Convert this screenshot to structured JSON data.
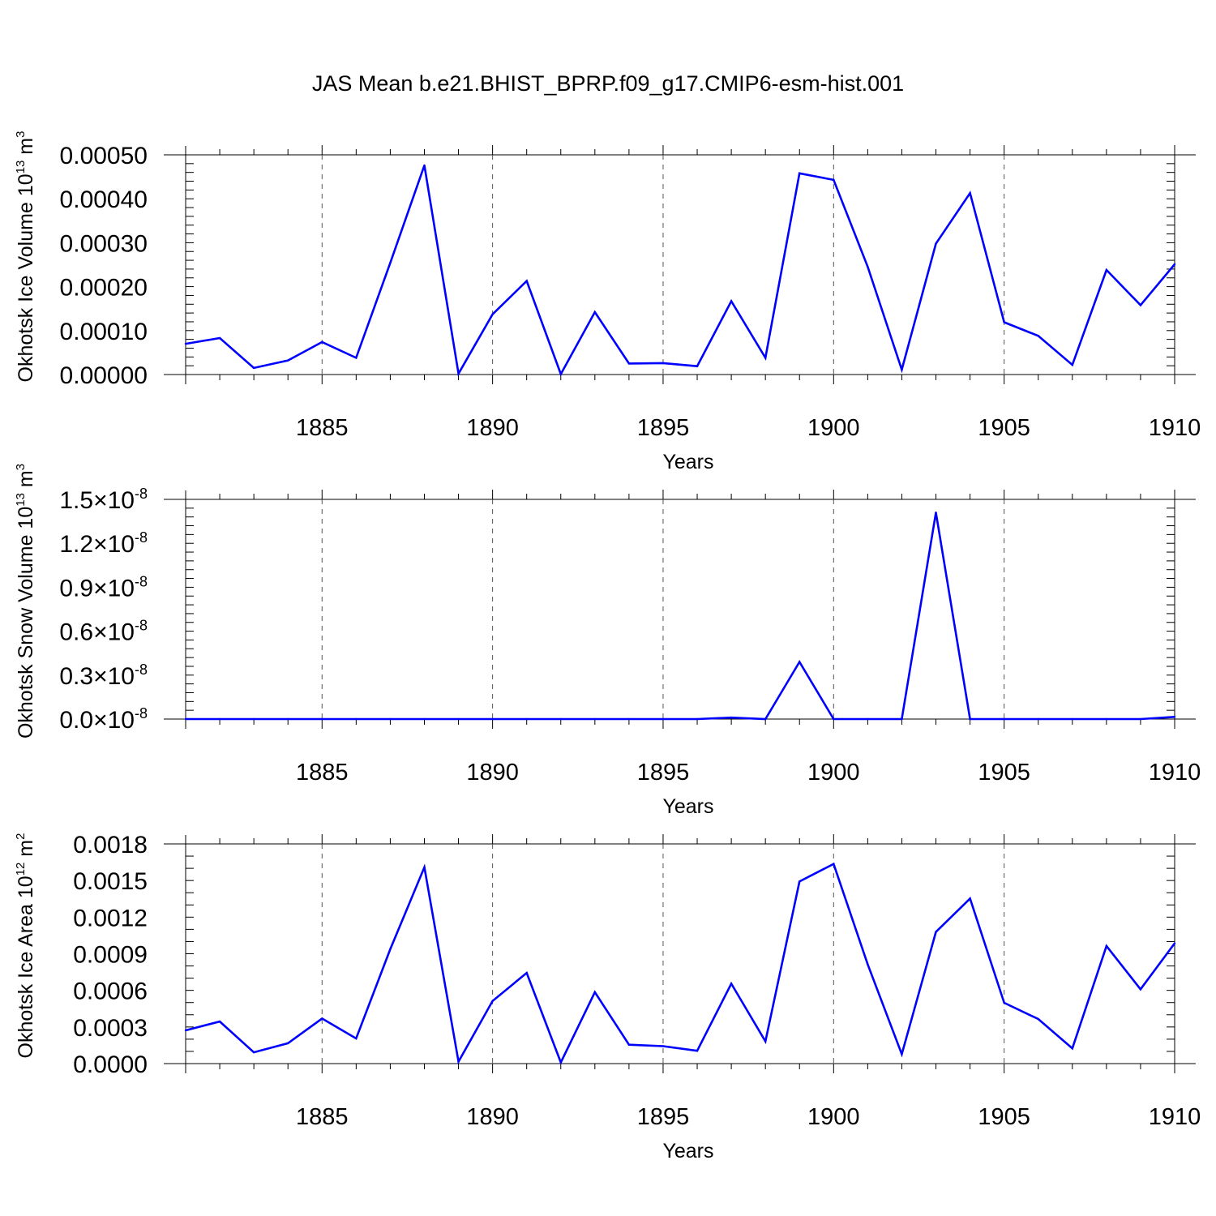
{
  "title": "JAS Mean b.e21.BHIST_BPRP.f09_g17.CMIP6-esm-hist.001",
  "series_color": "#0000ff",
  "chart_data": [
    {
      "type": "line",
      "ylabel": "Okhotsk Ice Volume 10",
      "ylabel_exp": "13",
      "ylabel_unit": " m",
      "ylabel_unit_exp": "3",
      "xlabel": "Years",
      "xlim": [
        1881,
        1910
      ],
      "ylim": [
        0,
        0.0005
      ],
      "x_major_ticks": [
        1885,
        1890,
        1895,
        1900,
        1905,
        1910
      ],
      "x_major_labels": [
        "1885",
        "1890",
        "1895",
        "1900",
        "1905",
        "1910"
      ],
      "y_major_ticks": [
        0,
        0.0001,
        0.0002,
        0.0003,
        0.0004,
        0.0005
      ],
      "y_tick_labels": [
        "0.00000",
        "0.00010",
        "0.00020",
        "0.00030",
        "0.00040",
        "0.00050"
      ],
      "y_tick_suffix": "",
      "y_minor_step": 2e-05,
      "grid": "vertical dashed at major years",
      "x": [
        1881,
        1882,
        1883,
        1884,
        1885,
        1886,
        1887,
        1888,
        1889,
        1890,
        1891,
        1892,
        1893,
        1894,
        1895,
        1896,
        1897,
        1898,
        1899,
        1900,
        1901,
        1902,
        1903,
        1904,
        1905,
        1906,
        1907,
        1908,
        1909,
        1910
      ],
      "values": [
        7e-05,
        8.3e-05,
        1.5e-05,
        3.2e-05,
        7.4e-05,
        3.8e-05,
        0.000254,
        0.000476,
        2e-06,
        0.000137,
        0.000213,
        1e-06,
        0.000142,
        2.5e-05,
        2.6e-05,
        1.9e-05,
        0.000167,
        3.8e-05,
        0.000458,
        0.000443,
        0.000245,
        1.1e-05,
        0.000298,
        0.000413,
        0.000119,
        8.8e-05,
        2.2e-05,
        0.000238,
        0.000158,
        0.000251
      ]
    },
    {
      "type": "line",
      "ylabel": "Okhotsk Snow Volume 10",
      "ylabel_exp": "13",
      "ylabel_unit": " m",
      "ylabel_unit_exp": "3",
      "xlabel": "Years",
      "xlim": [
        1881,
        1910
      ],
      "ylim": [
        0,
        1.5e-08
      ],
      "x_major_ticks": [
        1885,
        1890,
        1895,
        1900,
        1905,
        1910
      ],
      "x_major_labels": [
        "1885",
        "1890",
        "1895",
        "1900",
        "1905",
        "1910"
      ],
      "y_major_ticks": [
        0,
        3e-09,
        6e-09,
        9e-09,
        1.2e-08,
        1.5e-08
      ],
      "y_tick_labels": [
        "0.0",
        "0.3",
        "0.6",
        "0.9",
        "1.2",
        "1.5"
      ],
      "y_tick_suffix": "×10",
      "y_tick_suffix_exp": "-8",
      "y_minor_step": 6e-10,
      "grid": "vertical dashed at major years",
      "x": [
        1881,
        1882,
        1883,
        1884,
        1885,
        1886,
        1887,
        1888,
        1889,
        1890,
        1891,
        1892,
        1893,
        1894,
        1895,
        1896,
        1897,
        1898,
        1899,
        1900,
        1901,
        1902,
        1903,
        1904,
        1905,
        1906,
        1907,
        1908,
        1909,
        1910
      ],
      "values": [
        0,
        0,
        0,
        0,
        0,
        0,
        0,
        0,
        0,
        0,
        0,
        0,
        0,
        0,
        0,
        0,
        1e-10,
        0,
        3.9e-09,
        0,
        0,
        0,
        1.41e-08,
        0,
        0,
        0,
        0,
        0,
        0,
        1.5e-10
      ]
    },
    {
      "type": "line",
      "ylabel": "Okhotsk Ice Area 10",
      "ylabel_exp": "12",
      "ylabel_unit": " m",
      "ylabel_unit_exp": "2",
      "xlabel": "Years",
      "xlim": [
        1881,
        1910
      ],
      "ylim": [
        0,
        0.0018
      ],
      "x_major_ticks": [
        1885,
        1890,
        1895,
        1900,
        1905,
        1910
      ],
      "x_major_labels": [
        "1885",
        "1890",
        "1895",
        "1900",
        "1905",
        "1910"
      ],
      "y_major_ticks": [
        0,
        0.0003,
        0.0006,
        0.0009,
        0.0012,
        0.0015,
        0.0018
      ],
      "y_tick_labels": [
        "0.0000",
        "0.0003",
        "0.0006",
        "0.0009",
        "0.0012",
        "0.0015",
        "0.0018"
      ],
      "y_tick_suffix": "",
      "y_minor_step": 0.0001,
      "grid": "vertical dashed at major years",
      "x": [
        1881,
        1882,
        1883,
        1884,
        1885,
        1886,
        1887,
        1888,
        1889,
        1890,
        1891,
        1892,
        1893,
        1894,
        1895,
        1896,
        1897,
        1898,
        1899,
        1900,
        1901,
        1902,
        1903,
        1904,
        1905,
        1906,
        1907,
        1908,
        1909,
        1910
      ],
      "values": [
        0.000272,
        0.000345,
        9.2e-05,
        0.000167,
        0.000369,
        0.000206,
        0.000937,
        0.001609,
        1.6e-05,
        0.000513,
        0.000743,
        9e-06,
        0.000585,
        0.000155,
        0.000143,
        0.000105,
        0.000655,
        0.000182,
        0.001492,
        0.001636,
        0.000812,
        7.7e-05,
        0.001079,
        0.001352,
        0.000498,
        0.000365,
        0.000125,
        0.000963,
        0.000609,
        0.000986
      ]
    }
  ]
}
